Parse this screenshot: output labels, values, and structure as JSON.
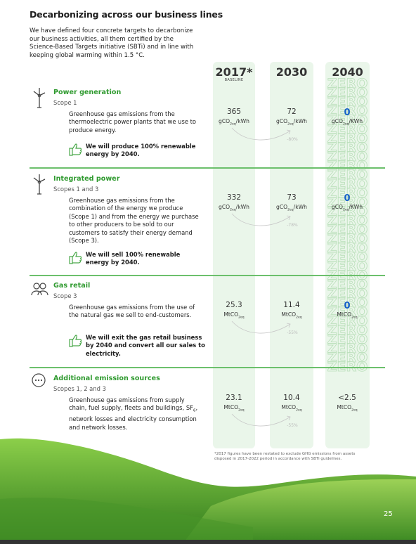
{
  "header": {
    "title": "Decarbonizing across our business lines",
    "intro": "We have defined four concrete targets to decarbonize our business activities, all them certified by the Science-Based Targets initiative (SBTi) and in line with keeping global warming within 1.5 °C."
  },
  "columns": [
    {
      "year": "2017*",
      "note": "BASELINE"
    },
    {
      "year": "2030"
    },
    {
      "year": "2040"
    }
  ],
  "zero_watermark": "ZERO",
  "sections": [
    {
      "title": "Power generation",
      "scope": "Scope 1",
      "description": [
        {
          "text": "Greenhouse gas emissions from the thermoelectric power plants that we use to produce energy."
        }
      ],
      "commitment": "We will produce 100% renewable energy by 2040.",
      "baseline": {
        "value": "365",
        "unit": {
          "text": "gCO",
          "sub": "2eq",
          "after": "/kWh"
        }
      },
      "target_2030": {
        "value": "72",
        "unit": {
          "text": "gCO",
          "sub": "2eq",
          "after": "/kWh"
        },
        "reduction": "-80%"
      },
      "target_2040": {
        "value": "0",
        "unit": {
          "text": "gCO",
          "sub": "2eq",
          "after": "/KWh"
        },
        "highlight": true
      }
    },
    {
      "title": "Integrated power",
      "scope": "Scopes 1 and 3",
      "description": [
        {
          "text": "Greenhouse gas emissions from the combination of the energy we produce (Scope 1) and from the energy we purchase to other producers to be sold to our customers to satisfy their energy demand (Scope 3)."
        }
      ],
      "commitment": "We will sell 100% renewable energy by 2040.",
      "baseline": {
        "value": "332",
        "unit": {
          "text": "gCO",
          "sub": "2eq",
          "after": "/kWh"
        }
      },
      "target_2030": {
        "value": "73",
        "unit": {
          "text": "gCO",
          "sub": "2eq",
          "after": "/kWh"
        },
        "reduction": "-78%"
      },
      "target_2040": {
        "value": "0",
        "unit": {
          "text": "gCO",
          "sub": "2eq",
          "after": "/KWh"
        },
        "highlight": true
      }
    },
    {
      "title": "Gas retail",
      "scope": "Scope 3",
      "description": [
        {
          "text": "Greenhouse gas emissions from the use of the natural gas we sell to end-customers."
        }
      ],
      "commitment": "We will exit the gas retail business by 2040 and convert all our sales to electricity.",
      "baseline": {
        "value": "25.3",
        "unit": {
          "text": "MtCO",
          "sub": "2eq"
        }
      },
      "target_2030": {
        "value": "11.4",
        "unit": {
          "text": "MtCO",
          "sub": "2eq"
        },
        "reduction": "-55%"
      },
      "target_2040": {
        "value": "0",
        "unit": {
          "text": "MtCO",
          "sub": "2eq"
        },
        "highlight": true
      }
    },
    {
      "title": "Additional emission sources",
      "scope": "Scopes 1, 2 and 3",
      "description": [
        {
          "text": "Greenhouse gas emissions from supply chain, fuel supply, fleets and buildings, SF"
        },
        {
          "text": "6",
          "sub": true
        },
        {
          "text": ", network losses and electricity consumption and network losses."
        }
      ],
      "baseline": {
        "value": "23.1",
        "unit": {
          "text": "MtCO",
          "sub": "2eq"
        }
      },
      "target_2030": {
        "value": "10.4",
        "unit": {
          "text": "MtCO",
          "sub": "2eq"
        },
        "reduction": "-55%"
      },
      "target_2040": {
        "value": "<2.5",
        "unit": {
          "text": "MtCO",
          "sub": "2eq"
        },
        "highlight": false
      }
    }
  ],
  "footnote": "*2017 figures have been restated to exclude GHG emissions from assets disposed in 2017-2022 period in accordance with SBTi guidelines.",
  "page_number": "25"
}
